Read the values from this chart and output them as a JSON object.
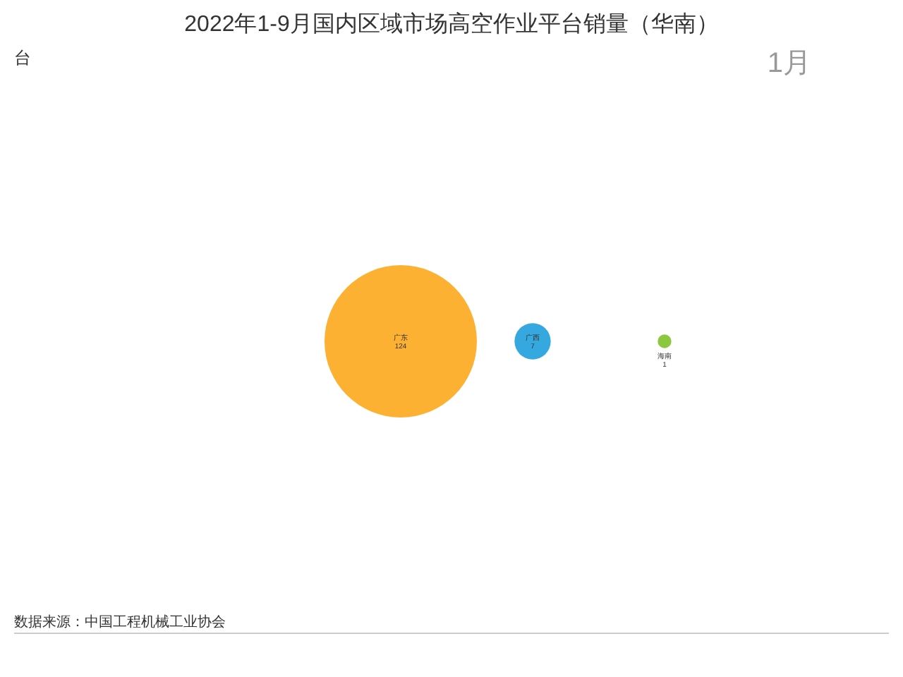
{
  "chart_data": {
    "type": "other",
    "title": "2022年1-9月国内区域市场高空作业平台销量（华南）",
    "categories": [
      "广东",
      "广西",
      "海南"
    ],
    "values": [
      124,
      7,
      1
    ],
    "colors": [
      "#fdb133",
      "#35a8e0",
      "#8dc63f"
    ],
    "data_labels": true,
    "annotations": [
      "台",
      "1月",
      "数据来源：中国工程机械工业协会"
    ]
  }
}
